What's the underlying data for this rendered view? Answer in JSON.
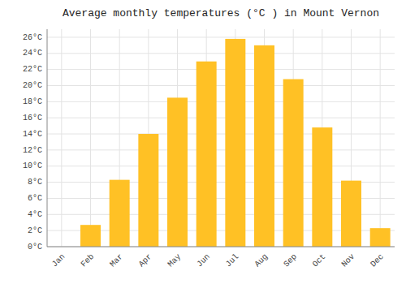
{
  "chart_data": {
    "type": "bar",
    "title": "Average monthly temperatures (°C ) in Mount Vernon",
    "categories": [
      "Jan",
      "Feb",
      "Mar",
      "Apr",
      "May",
      "Jun",
      "Jul",
      "Aug",
      "Sep",
      "Oct",
      "Nov",
      "Dec"
    ],
    "values": [
      0,
      2.7,
      8.3,
      14.0,
      18.5,
      23.0,
      25.8,
      25.0,
      20.8,
      14.8,
      8.2,
      2.3
    ],
    "color": "#FFC125",
    "ylim": [
      0,
      27
    ],
    "yticks": [
      {
        "value": 0,
        "label": "0°C"
      },
      {
        "value": 2,
        "label": "2°C"
      },
      {
        "value": 4,
        "label": "4°C"
      },
      {
        "value": 6,
        "label": "6°C"
      },
      {
        "value": 8,
        "label": "8°C"
      },
      {
        "value": 10,
        "label": "10°C"
      },
      {
        "value": 12,
        "label": "12°C"
      },
      {
        "value": 14,
        "label": "14°C"
      },
      {
        "value": 16,
        "label": "16°C"
      },
      {
        "value": 18,
        "label": "18°C"
      },
      {
        "value": 20,
        "label": "20°C"
      },
      {
        "value": 22,
        "label": "22°C"
      },
      {
        "value": 24,
        "label": "24°C"
      },
      {
        "value": 26,
        "label": "26°C"
      }
    ],
    "grid": true
  }
}
